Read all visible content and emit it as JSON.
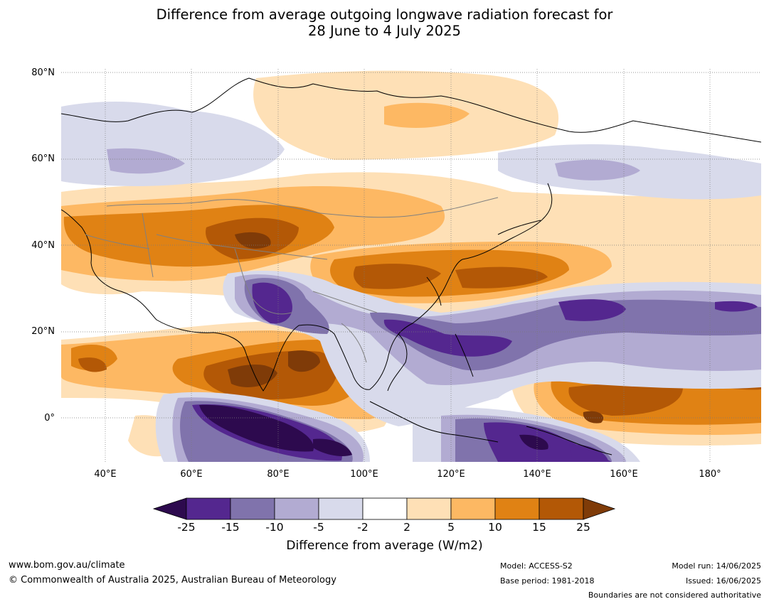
{
  "title": {
    "line1": "Difference from average outgoing longwave radiation forecast for",
    "line2": "28 June to 4 July 2025"
  },
  "map": {
    "lat_labels": [
      "80°N",
      "60°N",
      "40°N",
      "20°N",
      "0°"
    ],
    "lon_labels": [
      "40°E",
      "60°E",
      "80°E",
      "100°E",
      "120°E",
      "140°E",
      "160°E",
      "180°"
    ],
    "colors": {
      "purple_extreme": "#2d0a4e",
      "purple_dark": "#54278f",
      "purple_mid": "#8073ac",
      "purple_light": "#b2abd2",
      "purple_pale": "#d8daeb",
      "neutral": "#ffffff",
      "orange_pale": "#fee0b6",
      "orange_light": "#fdb863",
      "orange_mid": "#e08214",
      "orange_dark": "#b35806",
      "orange_extreme": "#7f3b08"
    }
  },
  "colorbar": {
    "ticks": [
      "-25",
      "-15",
      "-10",
      "-5",
      "-2",
      "2",
      "5",
      "10",
      "15",
      "25"
    ],
    "colors": [
      "#54278f",
      "#8073ac",
      "#b2abd2",
      "#d8daeb",
      "#ffffff",
      "#fee0b6",
      "#fdb863",
      "#e08214",
      "#b35806"
    ],
    "under_color": "#2d0a4e",
    "over_color": "#7f3b08",
    "label": "Difference from average (W/m2)"
  },
  "footer": {
    "url": "www.bom.gov.au/climate",
    "copyright": "© Commonwealth of Australia 2025, Australian Bureau of Meteorology",
    "model": "Model: ACCESS-S2",
    "base_period": "Base period: 1981-2018",
    "model_run": "Model run: 14/06/2025",
    "issued": "Issued: 16/06/2025",
    "disclaimer": "Boundaries are not considered authoritative"
  }
}
